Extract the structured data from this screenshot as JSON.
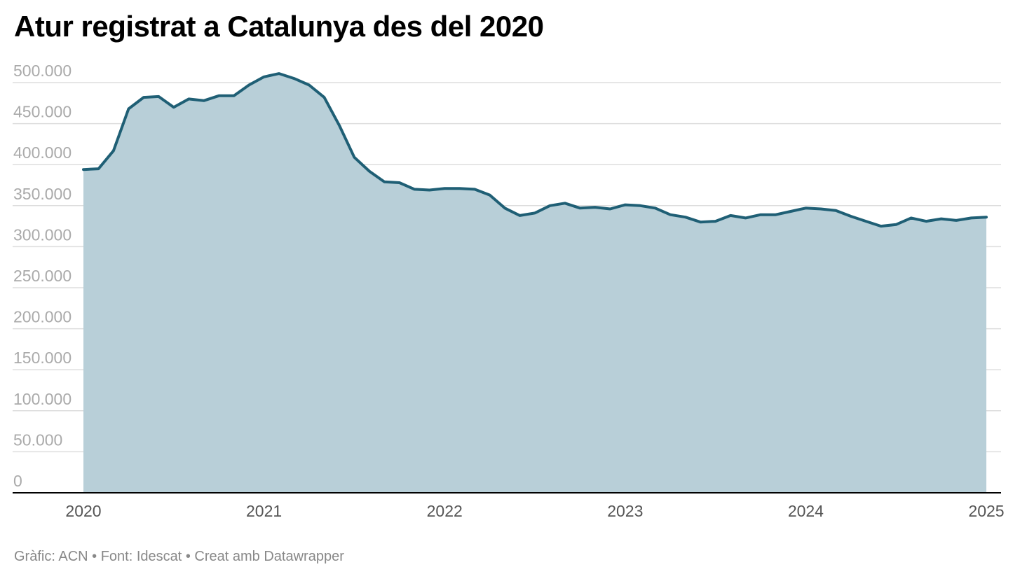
{
  "title": "Atur registrat a Catalunya des del 2020",
  "footer": "Gràfic: ACN • Font: Idescat • Creat amb Datawrapper",
  "colors": {
    "line": "#1f5f75",
    "area": "#b8cfd8",
    "grid": "#dddddd",
    "axis": "#000000"
  },
  "chart_data": {
    "type": "area",
    "title": "Atur registrat a Catalunya des del 2020",
    "xlabel": "",
    "ylabel": "",
    "ylim": [
      0,
      500000
    ],
    "xlim": [
      "2020-01",
      "2025-01"
    ],
    "grid": true,
    "y_ticks": [
      {
        "value": 0,
        "label": "0"
      },
      {
        "value": 50000,
        "label": "50.000"
      },
      {
        "value": 100000,
        "label": "100.000"
      },
      {
        "value": 150000,
        "label": "150.000"
      },
      {
        "value": 200000,
        "label": "200.000"
      },
      {
        "value": 250000,
        "label": "250.000"
      },
      {
        "value": 300000,
        "label": "300.000"
      },
      {
        "value": 350000,
        "label": "350.000"
      },
      {
        "value": 400000,
        "label": "400.000"
      },
      {
        "value": 450000,
        "label": "450.000"
      },
      {
        "value": 500000,
        "label": "500.000"
      }
    ],
    "x_ticks": [
      {
        "value": "2020-01",
        "label": "2020"
      },
      {
        "value": "2021-01",
        "label": "2021"
      },
      {
        "value": "2022-01",
        "label": "2022"
      },
      {
        "value": "2023-01",
        "label": "2023"
      },
      {
        "value": "2024-01",
        "label": "2024"
      },
      {
        "value": "2025-01",
        "label": "2025"
      }
    ],
    "series": [
      {
        "x": [
          "2020-01",
          "2020-02",
          "2020-03",
          "2020-04",
          "2020-05",
          "2020-06",
          "2020-07",
          "2020-08",
          "2020-09",
          "2020-10",
          "2020-11",
          "2020-12",
          "2021-01",
          "2021-02",
          "2021-03",
          "2021-04",
          "2021-05",
          "2021-06",
          "2021-07",
          "2021-08",
          "2021-09",
          "2021-10",
          "2021-11",
          "2021-12",
          "2022-01",
          "2022-02",
          "2022-03",
          "2022-04",
          "2022-05",
          "2022-06",
          "2022-07",
          "2022-08",
          "2022-09",
          "2022-10",
          "2022-11",
          "2022-12",
          "2023-01",
          "2023-02",
          "2023-03",
          "2023-04",
          "2023-05",
          "2023-06",
          "2023-07",
          "2023-08",
          "2023-09",
          "2023-10",
          "2023-11",
          "2023-12",
          "2024-01",
          "2024-02",
          "2024-03",
          "2024-04",
          "2024-05",
          "2024-06",
          "2024-07",
          "2024-08",
          "2024-09",
          "2024-10",
          "2024-11",
          "2024-12",
          "2025-01"
        ],
        "values": [
          394000,
          395000,
          417000,
          468000,
          482000,
          483000,
          470000,
          480000,
          478000,
          484000,
          484000,
          497000,
          507000,
          511000,
          505000,
          497000,
          482000,
          448000,
          409000,
          392000,
          379000,
          378000,
          370000,
          369000,
          371000,
          371000,
          370000,
          363000,
          347000,
          338000,
          341000,
          350000,
          353000,
          347000,
          348000,
          346000,
          351000,
          350000,
          347000,
          339000,
          336000,
          330000,
          331000,
          338000,
          335000,
          339000,
          339000,
          343000,
          347000,
          346000,
          344000,
          337000,
          331000,
          325000,
          327000,
          335000,
          331000,
          334000,
          332000,
          335000,
          336000
        ]
      }
    ]
  }
}
